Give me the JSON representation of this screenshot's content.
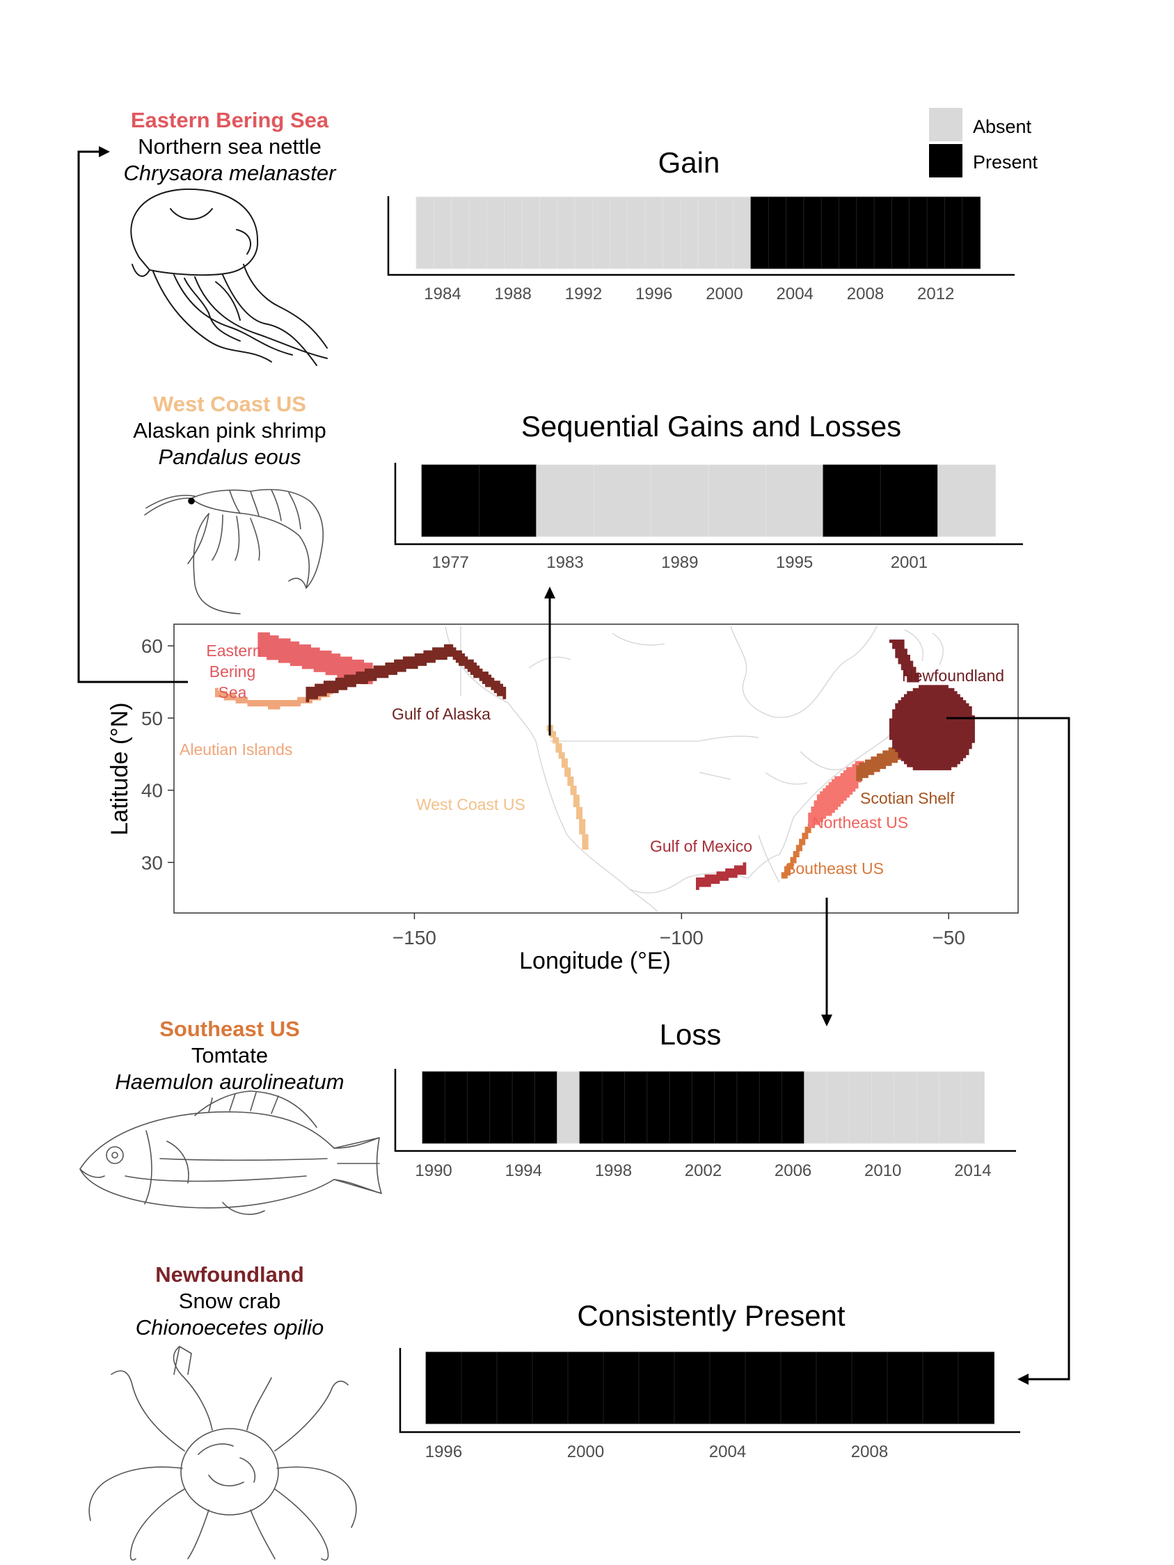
{
  "legend": {
    "absent_label": "Absent",
    "present_label": "Present",
    "absent_color": "#d9d9d9",
    "present_color": "#000000"
  },
  "panels": [
    {
      "region": "Eastern Bering Sea",
      "region_color": "#e0585e",
      "common_name": "Northern sea nettle",
      "scientific_name": "Chrysaora melanaster",
      "drawing_icon": "jellyfish-icon"
    },
    {
      "region": "West Coast US",
      "region_color": "#f2c08a",
      "common_name": "Alaskan pink shrimp",
      "scientific_name": "Pandalus eous",
      "drawing_icon": "shrimp-icon"
    },
    {
      "region": "Southeast US",
      "region_color": "#d9783a",
      "common_name": "Tomtate",
      "scientific_name": "Haemulon aurolineatum",
      "drawing_icon": "fish-icon"
    },
    {
      "region": "Newfoundland",
      "region_color": "#7b2428",
      "common_name": "Snow crab",
      "scientific_name": "Chionoecetes opilio",
      "drawing_icon": "crab-icon"
    }
  ],
  "chart_data": [
    {
      "type": "bar",
      "title": "Gain",
      "x": [
        1983,
        1984,
        1985,
        1986,
        1987,
        1988,
        1989,
        1990,
        1991,
        1992,
        1993,
        1994,
        1995,
        1996,
        1997,
        1998,
        1999,
        2000,
        2001,
        2002,
        2003,
        2004,
        2005,
        2006,
        2007,
        2008,
        2009,
        2010,
        2011,
        2012,
        2013,
        2014
      ],
      "presence": [
        0,
        0,
        0,
        0,
        0,
        0,
        0,
        0,
        0,
        0,
        0,
        0,
        0,
        0,
        0,
        0,
        0,
        0,
        0,
        1,
        1,
        1,
        1,
        1,
        1,
        1,
        1,
        1,
        1,
        1,
        1,
        1
      ],
      "xticks": [
        "1984",
        "1988",
        "1992",
        "1996",
        "2000",
        "2004",
        "2008",
        "2012"
      ],
      "xlim": [
        1982.5,
        2014.5
      ],
      "xlabel": "",
      "ylabel": ""
    },
    {
      "type": "bar",
      "title": "Sequential Gains and Losses",
      "x": [
        1977,
        1980,
        1983,
        1986,
        1989,
        1992,
        1995,
        1998,
        2001,
        2004
      ],
      "presence": [
        1,
        1,
        0,
        0,
        0,
        0,
        0,
        1,
        1,
        0
      ],
      "xticks": [
        "1977",
        "1983",
        "1989",
        "1995",
        "2001"
      ],
      "xlim": [
        1975.5,
        2005.5
      ],
      "xlabel": "",
      "ylabel": ""
    },
    {
      "type": "bar",
      "title": "Loss",
      "x": [
        1990,
        1991,
        1992,
        1993,
        1994,
        1995,
        1996,
        1997,
        1998,
        1999,
        2000,
        2001,
        2002,
        2003,
        2004,
        2005,
        2006,
        2007,
        2008,
        2009,
        2010,
        2011,
        2012,
        2013,
        2014
      ],
      "presence": [
        1,
        1,
        1,
        1,
        1,
        1,
        0,
        1,
        1,
        1,
        1,
        1,
        1,
        1,
        1,
        1,
        1,
        0,
        0,
        0,
        0,
        0,
        0,
        0,
        0
      ],
      "xticks": [
        "1990",
        "1994",
        "1998",
        "2002",
        "2006",
        "2010",
        "2014"
      ],
      "xlim": [
        1989.5,
        2014.5
      ],
      "xlabel": "",
      "ylabel": ""
    },
    {
      "type": "bar",
      "title": "Consistently Present",
      "x": [
        1996,
        1997,
        1998,
        1999,
        2000,
        2001,
        2002,
        2003,
        2004,
        2005,
        2006,
        2007,
        2008,
        2009,
        2010,
        2011
      ],
      "presence": [
        1,
        1,
        1,
        1,
        1,
        1,
        1,
        1,
        1,
        1,
        1,
        1,
        1,
        1,
        1,
        1
      ],
      "xticks": [
        "1996",
        "2000",
        "2004",
        "2008"
      ],
      "xlim": [
        1995.5,
        2011.5
      ],
      "xlabel": "",
      "ylabel": ""
    },
    {
      "type": "scatter",
      "title": "",
      "xlabel": "Longitude (°E)",
      "ylabel": "Latitude (°N)",
      "xlim": [
        -195,
        -37
      ],
      "ylim": [
        23,
        63
      ],
      "xticks": [
        -150,
        -100,
        -50
      ],
      "xtick_labels": [
        "−150",
        "−100",
        "−50"
      ],
      "yticks": [
        30,
        40,
        50,
        60
      ],
      "regions": [
        {
          "name": "Eastern Bering Sea",
          "label": "Eastern Bering Sea",
          "label_lines": [
            "Eastern",
            "Bering",
            "Sea"
          ],
          "color": "#e8666a",
          "lon": [
            -179,
            -158
          ],
          "lat": [
            54.5,
            62
          ]
        },
        {
          "name": "Aleutian Islands",
          "label": "Aleutian Islands",
          "color": "#f0a57a",
          "lon": [
            -187,
            -165
          ],
          "lat": [
            51,
            54
          ]
        },
        {
          "name": "Gulf of Alaska",
          "label": "Gulf of Alaska",
          "color": "#7a2a22",
          "lon": [
            -170,
            -133
          ],
          "lat": [
            52,
            60
          ]
        },
        {
          "name": "West Coast US",
          "label": "West Coast US",
          "color": "#f2c08a",
          "lon": [
            -126,
            -117
          ],
          "lat": [
            32,
            49
          ]
        },
        {
          "name": "Gulf of Mexico",
          "label": "Gulf of Mexico",
          "color": "#b3323c",
          "lon": [
            -97,
            -88
          ],
          "lat": [
            26,
            30
          ]
        },
        {
          "name": "Southeast US",
          "label": "Southeast US",
          "color": "#d9783a",
          "lon": [
            -81,
            -75
          ],
          "lat": [
            28,
            35.5
          ]
        },
        {
          "name": "Northeast US",
          "label": "Northeast US",
          "color": "#f5756f",
          "lon": [
            -76,
            -65
          ],
          "lat": [
            35,
            44
          ]
        },
        {
          "name": "Scotian Shelf",
          "label": "Scotian Shelf",
          "color": "#b55f2f",
          "lon": [
            -67,
            -57
          ],
          "lat": [
            41.5,
            47
          ]
        },
        {
          "name": "Newfoundland",
          "label": "Newfoundland",
          "color": "#7b2428",
          "lon": [
            -63,
            -45
          ],
          "lat": [
            43,
            61
          ]
        }
      ]
    }
  ]
}
